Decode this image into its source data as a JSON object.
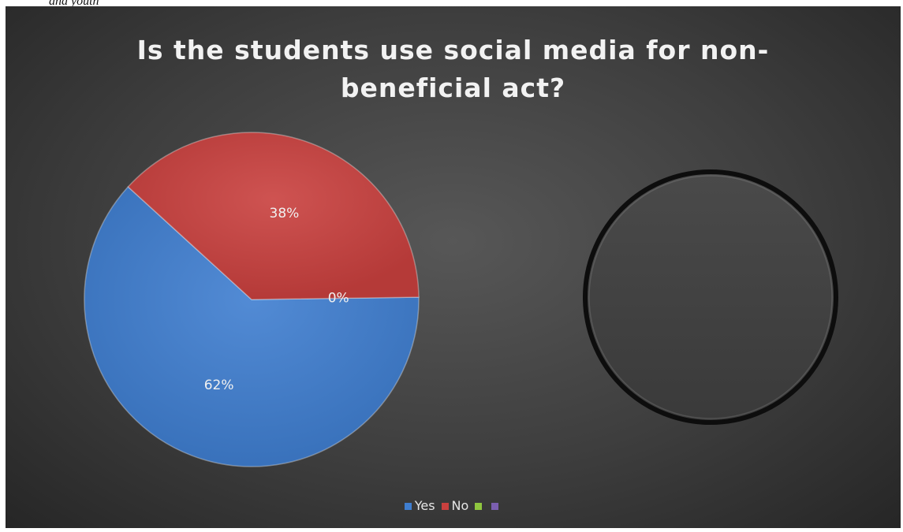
{
  "caption_fragment": "and youth",
  "chart_data": {
    "type": "pie",
    "title_lines": [
      "Is the students use social media for non-",
      "beneficial act?"
    ],
    "slices": [
      {
        "label": "Yes",
        "value": 62,
        "display": "62%",
        "color": "#3f7ed0"
      },
      {
        "label": "No",
        "value": 38,
        "display": "38%",
        "color": "#c9403e"
      },
      {
        "label": "",
        "value": 0,
        "display": "0%",
        "color": "#8fc63f"
      },
      {
        "label": "",
        "value": 0,
        "display": "",
        "color": "#7b5fb0"
      }
    ],
    "second_pie": {
      "values": [],
      "note": "empty pie outline"
    },
    "legend_position": "bottom"
  }
}
